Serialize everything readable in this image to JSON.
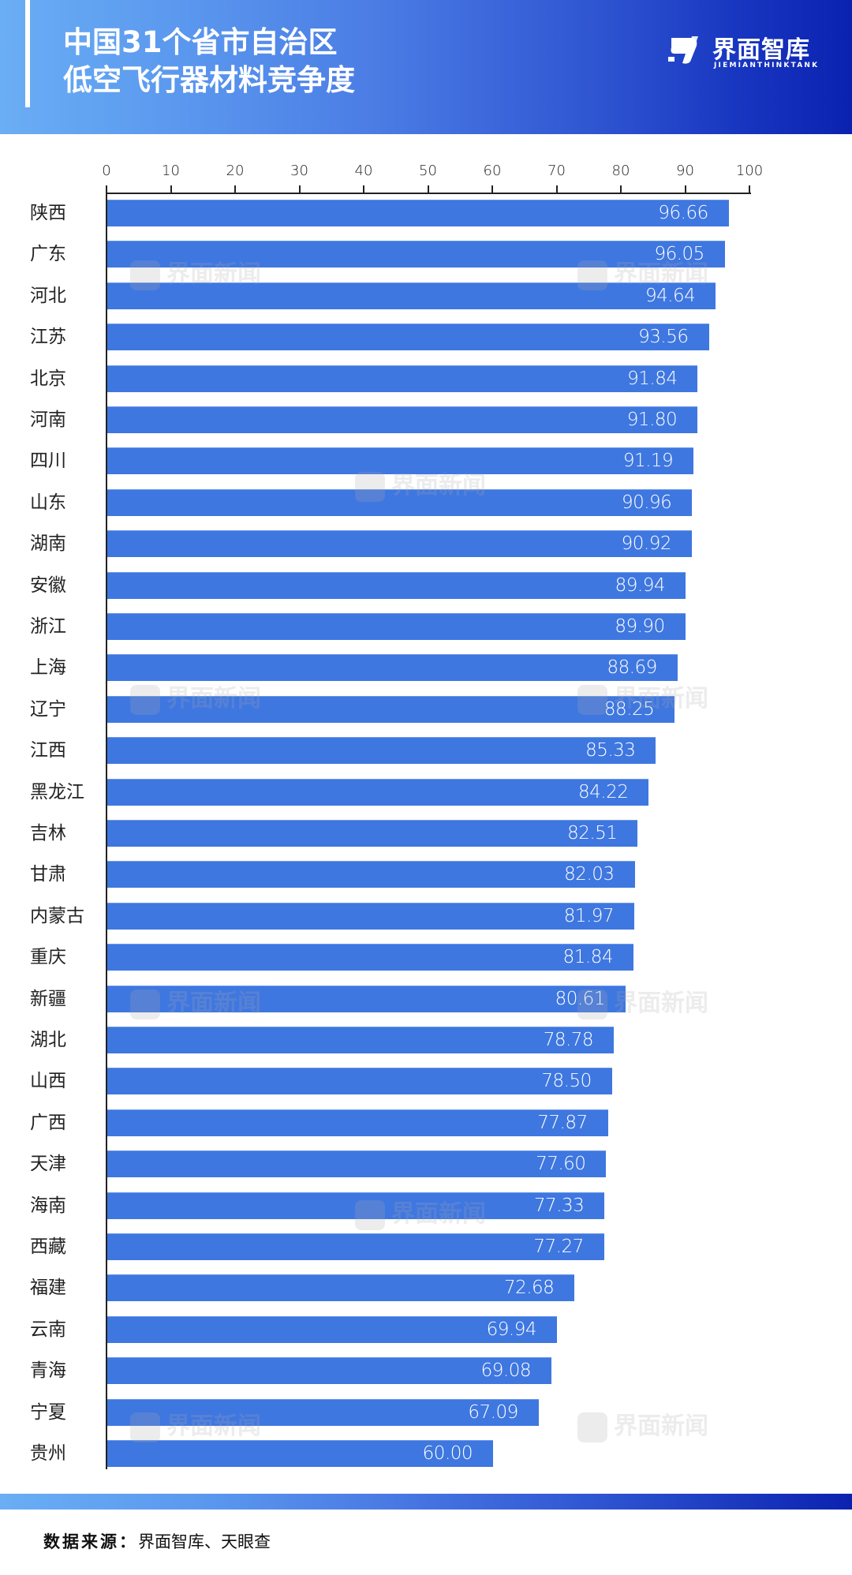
{
  "header": {
    "title_line1": "中国31个省市自治区",
    "title_line2": "低空飞行器材料竞争度",
    "logo_cn": "界面智库",
    "logo_en": "JIEMIANTHINKTANK"
  },
  "watermark": "界面新闻",
  "footer": {
    "source_label": "数据来源：",
    "source_value": "界面智库、天眼查"
  },
  "colors": {
    "bar": "#3f77e0",
    "header_start": "#6aaef5",
    "header_end": "#0b22b0"
  },
  "axis": {
    "ticks": [
      "0",
      "10",
      "20",
      "30",
      "40",
      "50",
      "60",
      "70",
      "80",
      "90",
      "100"
    ]
  },
  "chart_data": {
    "type": "bar",
    "orientation": "horizontal",
    "title": "中国31个省市自治区低空飞行器材料竞争度",
    "xlabel": "",
    "ylabel": "",
    "xlim": [
      0,
      100
    ],
    "x_ticks": [
      0,
      10,
      20,
      30,
      40,
      50,
      60,
      70,
      80,
      90,
      100
    ],
    "axis_position": "top",
    "grid": false,
    "legend": null,
    "source": "界面智库、天眼查",
    "categories": [
      "陕西",
      "广东",
      "河北",
      "江苏",
      "北京",
      "河南",
      "四川",
      "山东",
      "湖南",
      "安徽",
      "浙江",
      "上海",
      "辽宁",
      "江西",
      "黑龙江",
      "吉林",
      "甘肃",
      "内蒙古",
      "重庆",
      "新疆",
      "湖北",
      "山西",
      "广西",
      "天津",
      "海南",
      "西藏",
      "福建",
      "云南",
      "青海",
      "宁夏",
      "贵州"
    ],
    "values": [
      96.66,
      96.05,
      94.64,
      93.56,
      91.84,
      91.8,
      91.19,
      90.96,
      90.92,
      89.94,
      89.9,
      88.69,
      88.25,
      85.33,
      84.22,
      82.51,
      82.03,
      81.97,
      81.84,
      80.61,
      78.78,
      78.5,
      77.87,
      77.6,
      77.33,
      77.27,
      72.68,
      69.94,
      69.08,
      67.09,
      60.0
    ],
    "value_labels": [
      "96.66",
      "96.05",
      "94.64",
      "93.56",
      "91.84",
      "91.80",
      "91.19",
      "90.96",
      "90.92",
      "89.94",
      "89.90",
      "88.69",
      "88.25",
      "85.33",
      "84.22",
      "82.51",
      "82.03",
      "81.97",
      "81.84",
      "80.61",
      "78.78",
      "78.50",
      "77.87",
      "77.60",
      "77.33",
      "77.27",
      "72.68",
      "69.94",
      "69.08",
      "67.09",
      "60.00"
    ]
  }
}
